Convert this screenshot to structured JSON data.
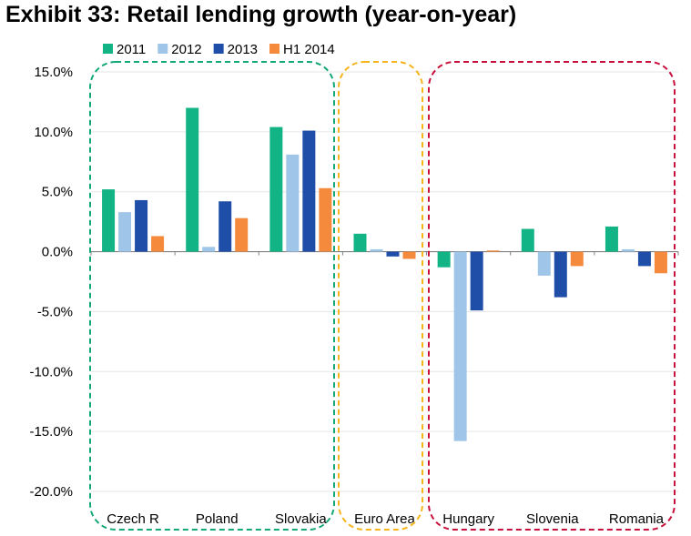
{
  "title": "Exhibit 33: Retail lending growth (year-on-year)",
  "colors": {
    "s2011": "#12b384",
    "s2012": "#9fc6e8",
    "s2013": "#1f4ea8",
    "sH1_2014": "#f58a3d",
    "group_cee": "#12a87a",
    "group_euro": "#f5b51c",
    "group_other": "#c8103c"
  },
  "chart_data": {
    "type": "bar",
    "title": "Exhibit 33: Retail lending growth (year-on-year)",
    "xlabel": "",
    "ylabel": "",
    "ylim": [
      -20,
      15
    ],
    "y_ticks": [
      "15.0%",
      "10.0%",
      "5.0%",
      "0.0%",
      "-5.0%",
      "-10.0%",
      "-15.0%",
      "-20.0%"
    ],
    "grid": true,
    "legend": "top-left",
    "categories": [
      "Czech R",
      "Poland",
      "Slovakia",
      "Euro Area",
      "Hungary",
      "Slovenia",
      "Romania"
    ],
    "series": [
      {
        "name": "2011",
        "values": [
          5.2,
          12.0,
          10.4,
          1.5,
          -1.3,
          1.9,
          2.1
        ]
      },
      {
        "name": "2012",
        "values": [
          3.3,
          0.4,
          8.1,
          0.2,
          -15.8,
          -2.0,
          0.2
        ]
      },
      {
        "name": "2013",
        "values": [
          4.3,
          4.2,
          10.1,
          -0.4,
          -4.9,
          -3.8,
          -1.2
        ]
      },
      {
        "name": "H1 2014",
        "values": [
          1.3,
          2.8,
          5.3,
          -0.6,
          0.1,
          -1.2,
          -1.8
        ]
      }
    ]
  }
}
